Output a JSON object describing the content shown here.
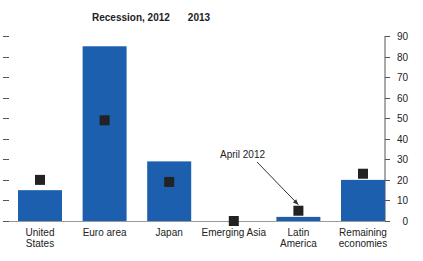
{
  "chart_data": {
    "type": "bar",
    "categories": [
      "United\nStates",
      "Euro area",
      "Japan",
      "Emerging Asia",
      "Latin\nAmerica",
      "Remaining\neconomies"
    ],
    "series": [
      {
        "name": "Recession, 2012",
        "type": "bar",
        "color": "#1c5fae",
        "values": [
          15,
          85,
          29,
          0,
          2,
          20
        ]
      },
      {
        "name": "2013",
        "type": "scatter",
        "marker": "square",
        "color": "#222222",
        "values": [
          20,
          49,
          19,
          0,
          5,
          23
        ]
      }
    ],
    "annotations": [
      {
        "text": "April 2012",
        "series": 1,
        "index": 4
      }
    ],
    "ylim": [
      0,
      90
    ],
    "yticks": [
      0,
      10,
      20,
      30,
      40,
      50,
      60,
      70,
      80,
      90
    ],
    "legend": "top"
  }
}
